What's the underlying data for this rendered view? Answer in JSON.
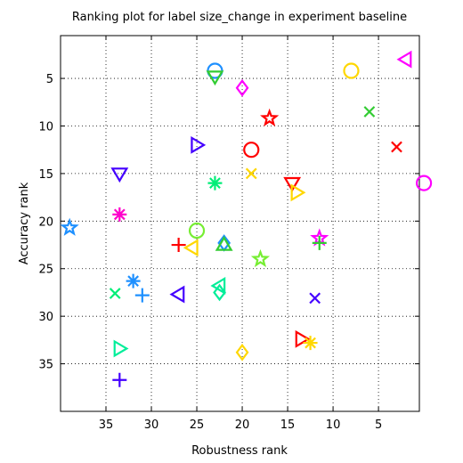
{
  "chart_data": {
    "type": "scatter",
    "title": "Ranking plot for label size_change in experiment baseline",
    "xlabel": "Robustness rank",
    "ylabel": "Accuracy rank",
    "xlim": [
      40,
      0.5
    ],
    "ylim": [
      0.5,
      40
    ],
    "x_reversed": true,
    "y_reversed": true,
    "grid": true,
    "grid_style": "dotted",
    "xticks": [
      35,
      30,
      25,
      20,
      15,
      10,
      5
    ],
    "yticks": [
      5,
      10,
      15,
      20,
      25,
      30,
      35
    ],
    "points": [
      {
        "x": 23,
        "y": 4.2,
        "marker": "circle",
        "color": "#1E90FF"
      },
      {
        "x": 23,
        "y": 4.8,
        "marker": "triangle-down",
        "color": "#33CC33"
      },
      {
        "x": 8,
        "y": 4.2,
        "marker": "circle",
        "color": "#FFD700"
      },
      {
        "x": 2,
        "y": 3,
        "marker": "triangle-left",
        "color": "#FF00FF"
      },
      {
        "x": 20,
        "y": 6,
        "marker": "diamond",
        "color": "#FF00FF"
      },
      {
        "x": 6,
        "y": 8.5,
        "marker": "x",
        "color": "#33CC33"
      },
      {
        "x": 17,
        "y": 9.2,
        "marker": "star",
        "color": "#FF0000"
      },
      {
        "x": 3,
        "y": 12.2,
        "marker": "x",
        "color": "#FF0000"
      },
      {
        "x": 25,
        "y": 12,
        "marker": "triangle-right",
        "color": "#4400FF"
      },
      {
        "x": 19,
        "y": 12.5,
        "marker": "circle",
        "color": "#FF0000"
      },
      {
        "x": 33.5,
        "y": 15,
        "marker": "triangle-down",
        "color": "#4400FF"
      },
      {
        "x": 19,
        "y": 15,
        "marker": "x",
        "color": "#FFD700"
      },
      {
        "x": 14.5,
        "y": 16,
        "marker": "triangle-down",
        "color": "#FF0000"
      },
      {
        "x": 14,
        "y": 17,
        "marker": "triangle-right",
        "color": "#FFD700"
      },
      {
        "x": 0,
        "y": 16,
        "marker": "circle",
        "color": "#FF00FF"
      },
      {
        "x": 23,
        "y": 16,
        "marker": "asterisk",
        "color": "#00EE77"
      },
      {
        "x": 33.5,
        "y": 19.3,
        "marker": "asterisk",
        "color": "#FF00CC"
      },
      {
        "x": 39,
        "y": 20.7,
        "marker": "star",
        "color": "#1E90FF"
      },
      {
        "x": 25,
        "y": 21,
        "marker": "circle",
        "color": "#77EE33"
      },
      {
        "x": 11.5,
        "y": 21.8,
        "marker": "star",
        "color": "#FF00FF"
      },
      {
        "x": 11.5,
        "y": 22.3,
        "marker": "plus",
        "color": "#33CC33"
      },
      {
        "x": 27,
        "y": 22.5,
        "marker": "plus",
        "color": "#FF0000"
      },
      {
        "x": 25.5,
        "y": 22.8,
        "marker": "triangle-left",
        "color": "#FFD700"
      },
      {
        "x": 22,
        "y": 22.3,
        "marker": "diamond",
        "color": "#1E90FF"
      },
      {
        "x": 22,
        "y": 22.5,
        "marker": "triangle-up",
        "color": "#33CC33"
      },
      {
        "x": 18,
        "y": 24,
        "marker": "star",
        "color": "#77EE33"
      },
      {
        "x": 32,
        "y": 26.3,
        "marker": "asterisk",
        "color": "#1E90FF"
      },
      {
        "x": 34,
        "y": 27.6,
        "marker": "x",
        "color": "#00EE77"
      },
      {
        "x": 31,
        "y": 27.8,
        "marker": "plus",
        "color": "#1E90FF"
      },
      {
        "x": 27,
        "y": 27.7,
        "marker": "triangle-left",
        "color": "#4400FF"
      },
      {
        "x": 22.5,
        "y": 26.8,
        "marker": "triangle-left",
        "color": "#00EE99"
      },
      {
        "x": 22.5,
        "y": 27.5,
        "marker": "diamond",
        "color": "#00EE99"
      },
      {
        "x": 12,
        "y": 28.1,
        "marker": "x",
        "color": "#4400FF"
      },
      {
        "x": 13.5,
        "y": 32.4,
        "marker": "triangle-right",
        "color": "#FF0000"
      },
      {
        "x": 12.5,
        "y": 32.8,
        "marker": "asterisk",
        "color": "#FFD700"
      },
      {
        "x": 33.5,
        "y": 33.4,
        "marker": "triangle-right",
        "color": "#00EE99"
      },
      {
        "x": 20,
        "y": 33.8,
        "marker": "diamond",
        "color": "#FFD700"
      },
      {
        "x": 33.5,
        "y": 36.7,
        "marker": "plus",
        "color": "#4400FF"
      }
    ]
  }
}
